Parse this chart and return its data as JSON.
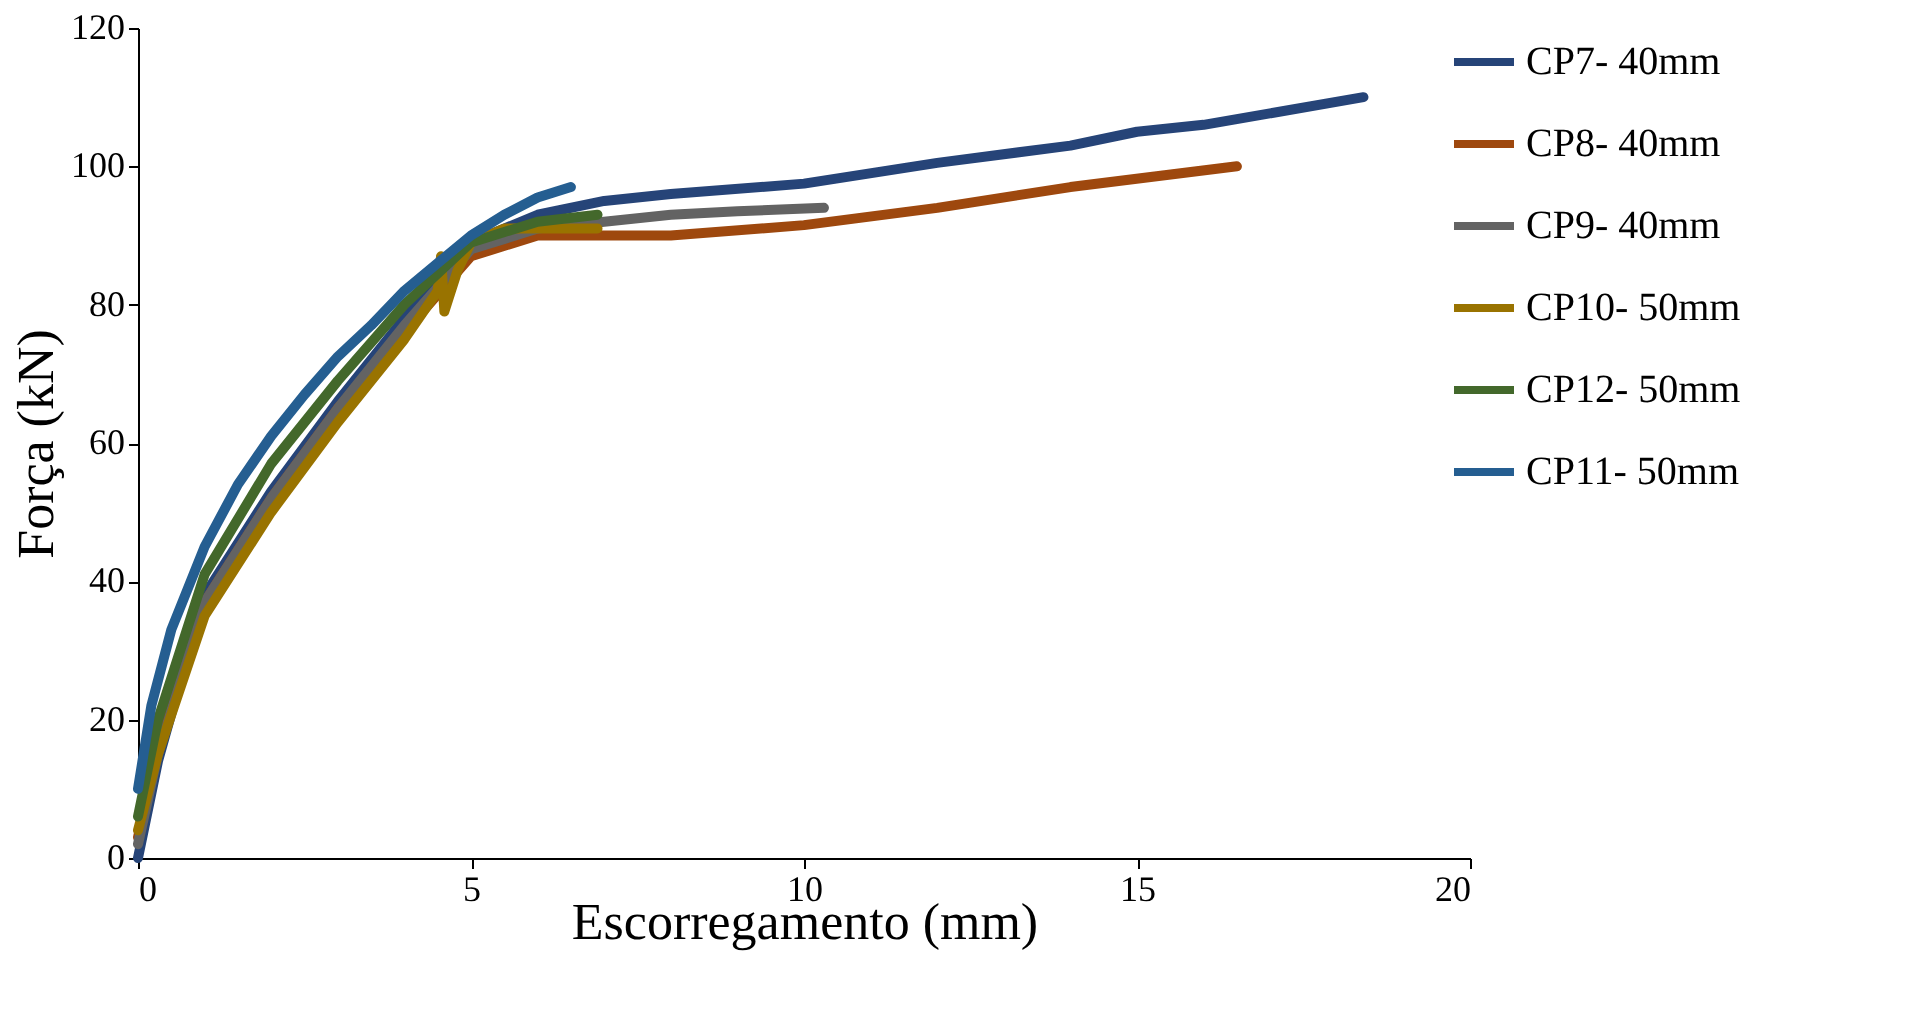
{
  "chart_data": {
    "type": "line",
    "xlabel": "Escorregamento (mm)",
    "ylabel": "Força (kN)",
    "xlim": [
      0,
      20
    ],
    "xticks": [
      0,
      5,
      10,
      15,
      20
    ],
    "ylim": [
      0,
      120
    ],
    "yticks": [
      0,
      20,
      40,
      60,
      80,
      100,
      120
    ],
    "grid": false,
    "legend": "right",
    "marker": "none",
    "line_style": "solid",
    "series": [
      {
        "name": "CP7-  40mm",
        "color": "#264478",
        "x": [
          0,
          0.3,
          1,
          2,
          3,
          4,
          5,
          6,
          7,
          8,
          10,
          12,
          14,
          15,
          16,
          18.4
        ],
        "values": [
          0,
          14,
          38,
          53,
          66,
          78,
          89,
          93,
          95,
          96,
          97.5,
          100.5,
          103,
          105,
          106,
          110
        ]
      },
      {
        "name": "CP8-  40mm",
        "color": "#9e480e",
        "x": [
          0,
          0.3,
          1,
          2,
          3,
          4,
          5,
          6,
          7,
          8,
          10,
          12,
          14,
          16.5
        ],
        "values": [
          3,
          16,
          37,
          52,
          65,
          76,
          87,
          90,
          90,
          90,
          91.5,
          94,
          97,
          100
        ]
      },
      {
        "name": "CP9-  40mm",
        "color": "#636363",
        "x": [
          0,
          0.3,
          1,
          2,
          3,
          4,
          5,
          6,
          7,
          8,
          9,
          10.3
        ],
        "values": [
          2,
          15,
          37,
          52,
          65,
          77,
          88,
          91,
          92,
          93,
          93.5,
          94
        ]
      },
      {
        "name": "CP10- 50mm",
        "color": "#997300",
        "x": [
          0,
          0.3,
          1,
          2,
          3,
          4,
          4.5,
          4.55,
          4.6,
          4.8,
          5,
          5.5,
          6,
          6.9
        ],
        "values": [
          4,
          15,
          35,
          50,
          63,
          75,
          82,
          87,
          79,
          85,
          89,
          91,
          91,
          91
        ]
      },
      {
        "name": "CP12- 50mm",
        "color": "#43682b",
        "x": [
          0,
          0.3,
          1,
          2,
          3,
          4,
          5,
          6,
          6.9
        ],
        "values": [
          6,
          20,
          41,
          57,
          69,
          80,
          89,
          92,
          93
        ]
      },
      {
        "name": "CP11- 50mm",
        "color": "#255e91",
        "x": [
          0,
          0.2,
          0.5,
          1,
          1.5,
          2,
          2.5,
          3,
          3.5,
          4,
          4.5,
          5,
          5.5,
          6,
          6.5
        ],
        "values": [
          10,
          22,
          33,
          45,
          54,
          61,
          67,
          72.5,
          77,
          82,
          86,
          90,
          93,
          95.5,
          97
        ]
      }
    ]
  }
}
